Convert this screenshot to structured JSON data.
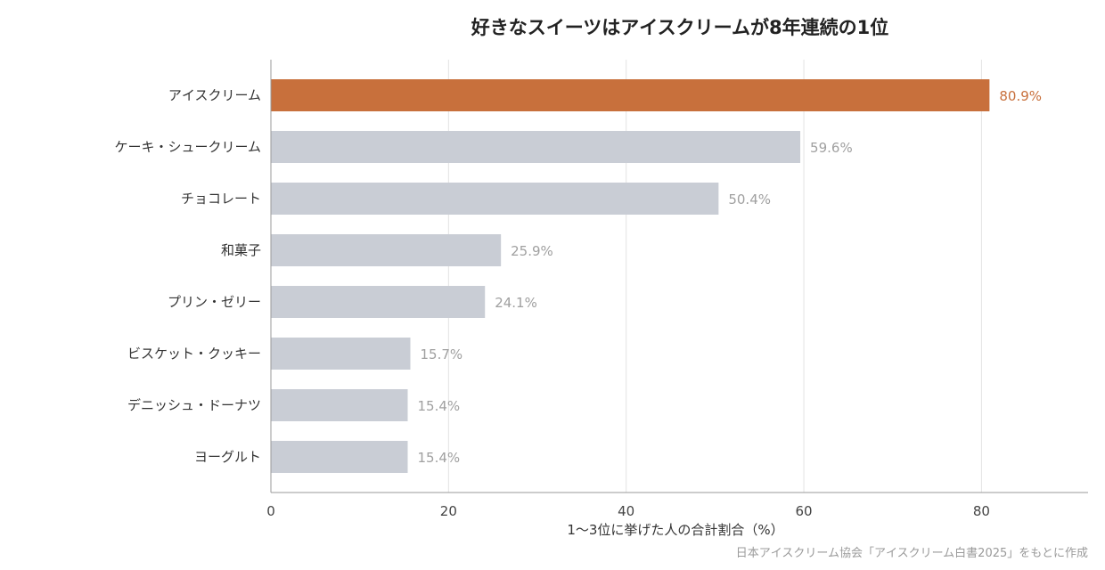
{
  "chart_data": {
    "type": "bar",
    "orientation": "horizontal",
    "title": "好きなスイーツはアイスクリームが8年連続の1位",
    "xlabel": "1〜3位に挙げた人の合計割合（%）",
    "ylabel": "",
    "categories": [
      "アイスクリーム",
      "ケーキ・シュークリーム",
      "チョコレート",
      "和菓子",
      "プリン・ゼリー",
      "ビスケット・クッキー",
      "デニッシュ・ドーナツ",
      "ヨーグルト"
    ],
    "values": [
      80.9,
      59.6,
      50.4,
      25.9,
      24.1,
      15.7,
      15.4,
      15.4
    ],
    "value_labels": [
      "80.9%",
      "59.6%",
      "50.4%",
      "25.9%",
      "24.1%",
      "15.7%",
      "15.4%",
      "15.4%"
    ],
    "xlim": [
      0,
      92
    ],
    "xticks": [
      0,
      20,
      40,
      60,
      80
    ],
    "grid": "vertical",
    "highlight_index": 0,
    "colors": {
      "highlight": "#C8703C",
      "default": "#C9CDD5",
      "default_label": "#A0A0A0"
    },
    "source": "日本アイスクリーム協会「アイスクリーム白書2025」をもとに作成"
  }
}
